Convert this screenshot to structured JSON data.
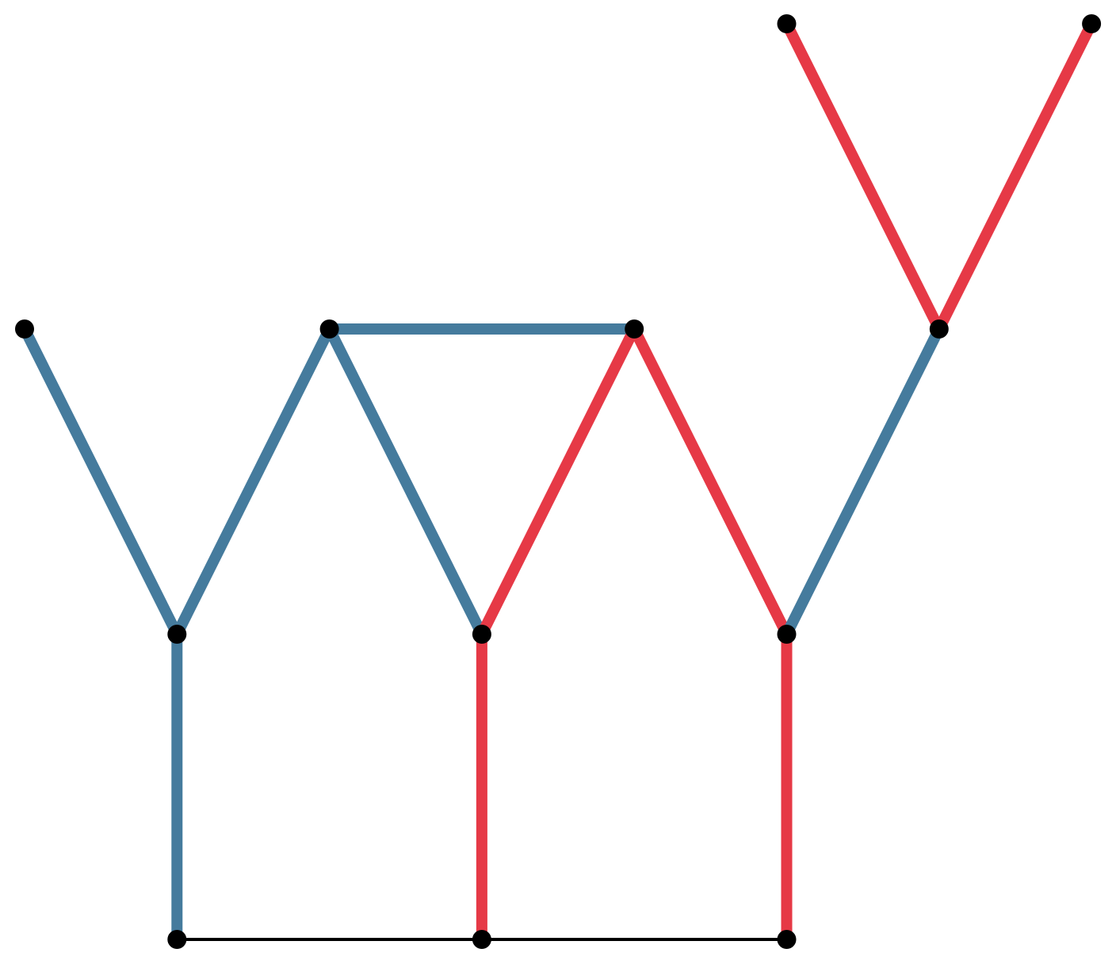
{
  "graph": {
    "colors": {
      "blue": "#457b9d",
      "red": "#e63946",
      "black": "#000000"
    },
    "nodes": [
      {
        "id": "n1",
        "col": 0,
        "row": 1
      },
      {
        "id": "n2",
        "col": 1,
        "row": 2
      },
      {
        "id": "n3",
        "col": 1,
        "row": 3
      },
      {
        "id": "n4",
        "col": 2,
        "row": 1
      },
      {
        "id": "n5",
        "col": 3,
        "row": 2
      },
      {
        "id": "n6",
        "col": 3,
        "row": 3
      },
      {
        "id": "n7",
        "col": 4,
        "row": 1
      },
      {
        "id": "n8",
        "col": 5,
        "row": 2
      },
      {
        "id": "n9",
        "col": 5,
        "row": 3
      },
      {
        "id": "n10",
        "col": 6,
        "row": 1
      },
      {
        "id": "n11",
        "col": 5,
        "row": 0
      },
      {
        "id": "n12",
        "col": 7,
        "row": 0
      }
    ],
    "edges": [
      {
        "from": "n1",
        "to": "n2",
        "color": "blue"
      },
      {
        "from": "n2",
        "to": "n4",
        "color": "blue"
      },
      {
        "from": "n2",
        "to": "n3",
        "color": "blue"
      },
      {
        "from": "n4",
        "to": "n5",
        "color": "blue"
      },
      {
        "from": "n4",
        "to": "n7",
        "color": "blue"
      },
      {
        "from": "n5",
        "to": "n7",
        "color": "red"
      },
      {
        "from": "n5",
        "to": "n6",
        "color": "red"
      },
      {
        "from": "n7",
        "to": "n8",
        "color": "red"
      },
      {
        "from": "n8",
        "to": "n9",
        "color": "red"
      },
      {
        "from": "n8",
        "to": "n10",
        "color": "blue"
      },
      {
        "from": "n10",
        "to": "n11",
        "color": "red"
      },
      {
        "from": "n10",
        "to": "n12",
        "color": "red"
      },
      {
        "from": "n3",
        "to": "n6",
        "color": "black"
      },
      {
        "from": "n6",
        "to": "n9",
        "color": "black"
      }
    ]
  }
}
